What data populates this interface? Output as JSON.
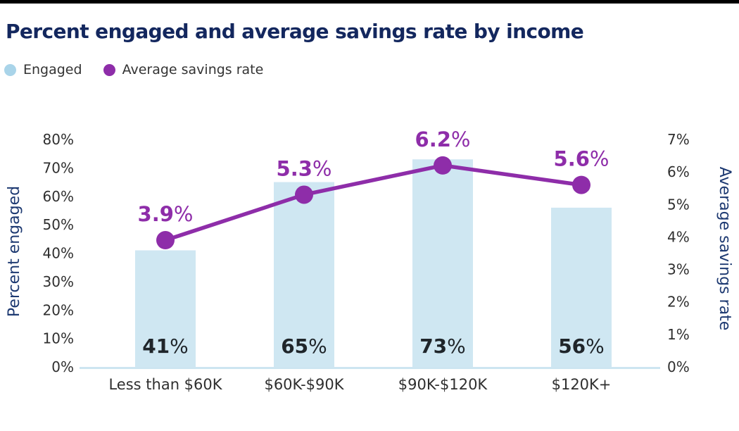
{
  "chart_data": {
    "type": "combo-bar-line",
    "title": "Percent engaged and average savings rate by income",
    "categories": [
      "Less than $60K",
      "$60K-$90K",
      "$90K-$120K",
      "$120K+"
    ],
    "series": [
      {
        "name": "Engaged",
        "type": "bar",
        "axis": "left",
        "values": [
          41,
          65,
          73,
          56
        ],
        "value_suffix": "%",
        "color": "#cfe7f2",
        "legend_color": "#a9d4e9"
      },
      {
        "name": "Average savings rate",
        "type": "line",
        "axis": "right",
        "values": [
          3.9,
          5.3,
          6.2,
          5.6
        ],
        "value_suffix": "%",
        "color": "#8e2da9",
        "legend_color": "#8e2da9"
      }
    ],
    "left_axis": {
      "label": "Percent engaged",
      "min": 0,
      "max": 80,
      "step": 10,
      "tick_suffix": "%"
    },
    "right_axis": {
      "label": "Average savings rate",
      "min": 0,
      "max": 7,
      "step": 1,
      "tick_suffix": "%"
    },
    "grid": false,
    "legend_position": "top-left",
    "colors": {
      "top_bar": "#000000",
      "title": "#13275e",
      "axis_title": "#1e3a72",
      "tick_text": "#2f2f2f",
      "bar": "#cfe7f2",
      "baseline": "#cde5f1",
      "line": "#8e2da9",
      "bar_label": "#1f252a",
      "legend_text": "#333333"
    }
  }
}
